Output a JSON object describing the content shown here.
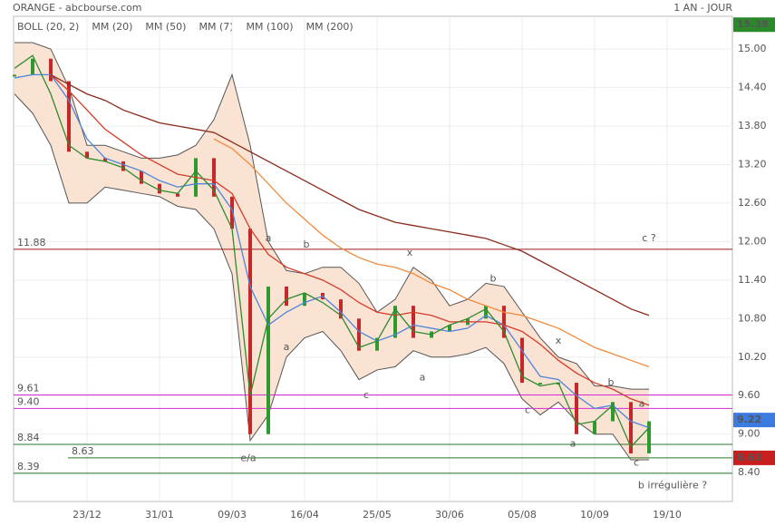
{
  "chart_data": {
    "type": "stock",
    "title": "ORANGE - abcbourse.com",
    "subtitle": "1 AN - JOUR",
    "categories": [
      null,
      null,
      null,
      null,
      "23/12",
      null,
      null,
      null,
      "31/01",
      null,
      null,
      null,
      "09/03",
      null,
      null,
      null,
      "16/04",
      null,
      null,
      null,
      "25/05",
      null,
      null,
      null,
      "30/06",
      null,
      null,
      null,
      "05/08",
      null,
      null,
      null,
      "10/09",
      null,
      null,
      null,
      "19/10"
    ],
    "values": [
      14.6,
      14.85,
      14.5,
      13.4,
      13.3,
      13.25,
      13.1,
      12.9,
      12.75,
      12.7,
      13.3,
      12.7,
      12.2,
      9.0,
      11.3,
      11.0,
      11.2,
      11.1,
      10.8,
      10.3,
      10.5,
      11.0,
      10.5,
      10.6,
      10.7,
      10.8,
      11.0,
      10.5,
      9.8,
      9.8,
      9.8,
      9.0,
      9.2,
      9.5,
      8.7,
      9.2,
      null
    ],
    "bollinger": {
      "name": "BOLL (20, 2)",
      "color": "#555555",
      "fill": "#fbe3d3",
      "upper": [
        15.1,
        15.1,
        15.0,
        14.4,
        13.5,
        13.5,
        13.4,
        13.3,
        13.3,
        13.35,
        13.5,
        13.9,
        14.6,
        13.5,
        12.0,
        11.55,
        11.5,
        11.6,
        11.6,
        11.35,
        10.9,
        11.1,
        11.6,
        11.4,
        11.0,
        11.1,
        11.35,
        11.3,
        10.9,
        10.5,
        10.2,
        10.1,
        9.75,
        9.75,
        9.7,
        9.7,
        null
      ],
      "lower": [
        14.3,
        14.0,
        13.5,
        12.6,
        12.6,
        12.85,
        12.8,
        12.75,
        12.7,
        12.55,
        12.5,
        12.2,
        11.5,
        8.9,
        9.3,
        10.2,
        10.5,
        10.6,
        10.3,
        9.85,
        10.0,
        10.05,
        10.3,
        10.2,
        10.2,
        10.25,
        10.35,
        10.1,
        9.55,
        9.3,
        9.5,
        9.2,
        9.0,
        9.0,
        8.6,
        8.6,
        null
      ]
    },
    "series": [
      {
        "name": "MM (20)",
        "color": "#4f86d9",
        "values": [
          14.55,
          14.6,
          14.6,
          14.2,
          13.6,
          13.3,
          13.2,
          13.1,
          12.95,
          12.85,
          12.9,
          12.9,
          12.5,
          11.3,
          10.7,
          10.9,
          11.05,
          11.15,
          10.9,
          10.6,
          10.45,
          10.55,
          10.7,
          10.65,
          10.6,
          10.65,
          10.85,
          10.7,
          10.3,
          9.9,
          9.85,
          9.6,
          9.4,
          9.45,
          9.2,
          9.1,
          null
        ]
      },
      {
        "name": "MM (50)",
        "color": "#d63a2a",
        "values": [
          null,
          null,
          14.6,
          14.35,
          14.05,
          13.75,
          13.55,
          13.35,
          13.2,
          13.05,
          13.0,
          12.95,
          12.75,
          12.2,
          11.8,
          11.6,
          11.5,
          11.4,
          11.25,
          11.05,
          10.9,
          10.85,
          10.9,
          10.85,
          10.75,
          10.75,
          10.75,
          10.7,
          10.6,
          10.4,
          10.15,
          9.95,
          9.8,
          9.7,
          9.55,
          9.45,
          null
        ]
      },
      {
        "name": "MM (7)",
        "color": "#2e8b2e",
        "values": [
          14.7,
          14.9,
          14.3,
          13.5,
          13.3,
          13.25,
          13.15,
          12.95,
          12.8,
          12.75,
          13.1,
          12.8,
          12.2,
          9.6,
          10.8,
          11.1,
          11.2,
          11.05,
          10.85,
          10.35,
          10.45,
          10.95,
          10.6,
          10.55,
          10.7,
          10.8,
          10.95,
          10.6,
          9.9,
          9.75,
          9.8,
          9.15,
          9.2,
          9.45,
          8.8,
          9.1,
          null
        ]
      },
      {
        "name": "MM (100)",
        "color": "#f08a3c",
        "values": [
          null,
          null,
          null,
          null,
          null,
          null,
          null,
          null,
          null,
          null,
          null,
          13.6,
          13.45,
          13.2,
          12.9,
          12.6,
          12.35,
          12.1,
          11.9,
          11.75,
          11.65,
          11.6,
          11.5,
          11.35,
          11.25,
          11.1,
          11.0,
          10.9,
          10.85,
          10.75,
          10.65,
          10.5,
          10.35,
          10.25,
          10.15,
          10.05,
          null
        ]
      },
      {
        "name": "MM (200)",
        "color": "#8b2a1a",
        "values": [
          null,
          null,
          14.6,
          14.45,
          14.3,
          14.2,
          14.05,
          13.95,
          13.85,
          13.8,
          13.75,
          13.7,
          13.55,
          13.4,
          13.25,
          13.1,
          12.95,
          12.8,
          12.65,
          12.5,
          12.4,
          12.3,
          12.25,
          12.2,
          12.15,
          12.1,
          12.05,
          11.95,
          11.85,
          11.7,
          11.55,
          11.4,
          11.25,
          11.1,
          10.95,
          10.85,
          null
        ]
      }
    ],
    "ylim": [
      7.95,
      15.51
    ],
    "yticks": [
      {
        "value": 8.4,
        "label": "8.40"
      },
      {
        "value": 9.0,
        "label": "9.00"
      },
      {
        "value": 9.6,
        "label": "9.60"
      },
      {
        "value": 10.2,
        "label": "10.20"
      },
      {
        "value": 10.8,
        "label": "10.80"
      },
      {
        "value": 11.4,
        "label": "11.40"
      },
      {
        "value": 12.0,
        "label": "12.00"
      },
      {
        "value": 12.6,
        "label": "12.60"
      },
      {
        "value": 13.2,
        "label": "13.20"
      },
      {
        "value": 13.8,
        "label": "13.80"
      },
      {
        "value": 14.4,
        "label": "14.40"
      },
      {
        "value": 15.0,
        "label": "15.00"
      }
    ],
    "grid": true,
    "levels": [
      {
        "value": 11.88,
        "color": "#9b1c1c"
      },
      {
        "value": 9.61,
        "color": "#d62ad6"
      },
      {
        "value": {
          "value": 9.4,
          "label": "9.40"
        },
        "color": "#d62ad6"
      },
      {
        "value": 8.84,
        "color": "#2a7a2a"
      },
      {
        "value": 8.63,
        "color": "#2a7a2a"
      },
      {
        "value": 8.39,
        "color": "#2a7a2a"
      }
    ],
    "price_tags": [
      {
        "value": 15.38,
        "color": "#2a8a2a"
      },
      {
        "value": 9.22,
        "color": "#3b7be0"
      },
      {
        "value": 8.63,
        "color": "#c81e1e"
      }
    ],
    "annotations": [
      {
        "text": "a",
        "x": 14,
        "y": 12.05,
        "color": "#2a3a9a"
      },
      {
        "text": "b",
        "x": 16.1,
        "y": 11.95,
        "color": "#9b1c1c"
      },
      {
        "text": "a",
        "x": 15,
        "y": 10.35,
        "color": "#9b1c1c"
      },
      {
        "text": "e/a",
        "x": 12.9,
        "y": 8.62,
        "color": "#9b1c1c"
      },
      {
        "text": "c",
        "x": 19.4,
        "y": 9.6,
        "color": "#9b1c1c"
      },
      {
        "text": "a",
        "x": 22.5,
        "y": 9.88,
        "color": "#9b1c1c"
      },
      {
        "text": "x",
        "x": 21.8,
        "y": 11.82,
        "color": "#9b1c1c"
      },
      {
        "text": "b",
        "x": 26.4,
        "y": 11.42,
        "color": "#9b1c1c"
      },
      {
        "text": "c",
        "x": 28.3,
        "y": 9.37,
        "color": "#9b1c1c"
      },
      {
        "text": "x",
        "x": 30,
        "y": 10.45,
        "color": "#9b1c1c"
      },
      {
        "text": "a",
        "x": 30.8,
        "y": 8.85,
        "color": "#9b1c1c"
      },
      {
        "text": "b",
        "x": 32.9,
        "y": 9.8,
        "color": "#9b1c1c"
      },
      {
        "text": "a",
        "x": 34.6,
        "y": 9.47,
        "color": "#9b1c1c"
      },
      {
        "text": "c",
        "x": 34.3,
        "y": 8.55,
        "color": "#9b1c1c"
      },
      {
        "text": "c ?",
        "x": 35,
        "y": 12.05,
        "color": "#2a3a9a"
      },
      {
        "text": "b irrégulière ?",
        "x": 36.3,
        "y": 8.2,
        "color": "#2a3a9a"
      }
    ]
  }
}
